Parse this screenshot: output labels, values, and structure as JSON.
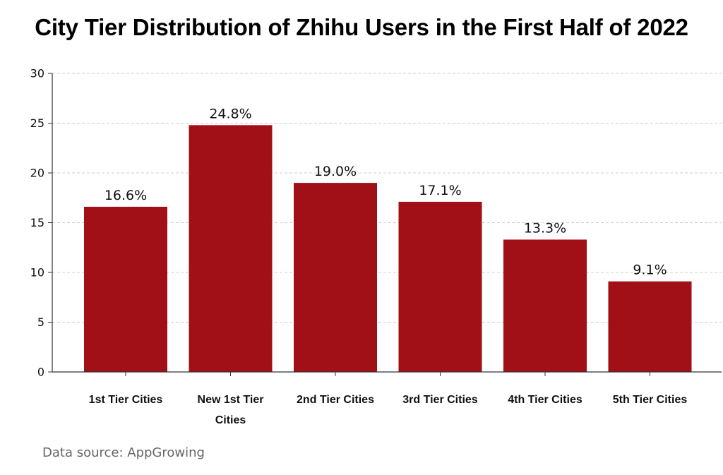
{
  "chart_data": {
    "type": "bar",
    "title": "City Tier Distribution of Zhihu Users in the First Half of 2022",
    "categories": [
      "1st Tier Cities",
      "New 1st Tier Cities",
      "2nd Tier Cities",
      "3rd Tier Cities",
      "4th Tier Cities",
      "5th Tier Cities"
    ],
    "category_lines": [
      [
        "1st Tier Cities"
      ],
      [
        "New 1st Tier",
        "Cities"
      ],
      [
        "2nd Tier Cities"
      ],
      [
        "3rd Tier Cities"
      ],
      [
        "4th Tier Cities"
      ],
      [
        "5th Tier Cities"
      ]
    ],
    "values": [
      16.6,
      24.8,
      19.0,
      17.1,
      13.3,
      9.1
    ],
    "data_labels": [
      "16.6%",
      "24.8%",
      "19.0%",
      "17.1%",
      "13.3%",
      "9.1%"
    ],
    "xlabel": "",
    "ylabel": "",
    "ylim": [
      0,
      30
    ],
    "yticks": [
      0,
      5,
      10,
      15,
      20,
      25,
      30
    ],
    "grid": true,
    "bar_color": "#a01016",
    "grid_color": "#cccccc"
  },
  "source": "Data source: AppGrowing"
}
